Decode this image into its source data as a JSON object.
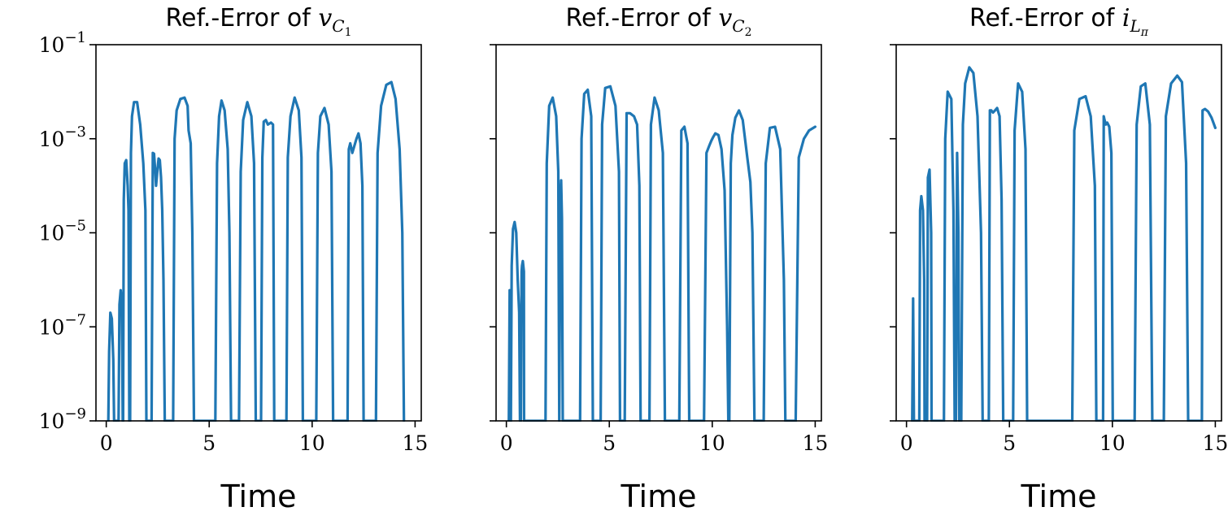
{
  "chart_data": [
    {
      "type": "line",
      "title": "Ref.-Error of",
      "title_symbol": "v",
      "title_subscript": "C",
      "title_subsubscript": "1",
      "xlabel": "Time",
      "ylabel": "",
      "xlim": [
        -0.5,
        15.3
      ],
      "ylim": [
        1e-09,
        0.1
      ],
      "yscale": "log",
      "xticks": [
        0,
        5,
        10,
        15
      ],
      "xtick_labels": [
        "0",
        "5",
        "10",
        "15"
      ],
      "yticks": [
        1e-09,
        1e-07,
        1e-05,
        0.001,
        0.1
      ],
      "ytick_labels": [
        {
          "base": "10",
          "exp": "−9"
        },
        {
          "base": "10",
          "exp": "−7"
        },
        {
          "base": "10",
          "exp": "−5"
        },
        {
          "base": "10",
          "exp": "−3"
        },
        {
          "base": "10",
          "exp": "−1"
        }
      ],
      "show_ytick_labels": true,
      "line_color": "#1f77b4",
      "series": [
        {
          "x": [
            0.1,
            0.14,
            0.2,
            0.27,
            0.34,
            0.38,
            0.6,
            0.64,
            0.7,
            0.76,
            0.8,
            0.82,
            0.85,
            0.9,
            0.97,
            1.04,
            1.08,
            1.12,
            1.16,
            1.2,
            1.25,
            1.35,
            1.5,
            1.65,
            1.8,
            1.9,
            1.95,
            2.2,
            2.26,
            2.32,
            2.38,
            2.42,
            2.48,
            2.54,
            2.6,
            2.66,
            2.72,
            2.78,
            2.84,
            2.88,
            3.25,
            3.32,
            3.42,
            3.6,
            3.8,
            3.95,
            4.0,
            4.1,
            4.18,
            4.26,
            5.3,
            5.38,
            5.48,
            5.6,
            5.75,
            5.9,
            5.98,
            6.06,
            6.45,
            6.53,
            6.65,
            6.85,
            7.05,
            7.18,
            7.26,
            7.52,
            7.58,
            7.65,
            7.75,
            7.85,
            8.0,
            8.1,
            8.16,
            8.75,
            8.82,
            8.95,
            9.15,
            9.35,
            9.48,
            9.55,
            10.2,
            10.28,
            10.4,
            10.6,
            10.8,
            10.94,
            11.02,
            11.72,
            11.78,
            11.85,
            11.95,
            12.05,
            12.15,
            12.25,
            12.35,
            12.44,
            12.5,
            13.1,
            13.18,
            13.35,
            13.6,
            13.85,
            14.05,
            14.25,
            14.38,
            14.46
          ],
          "y": [
            1e-09,
            3e-08,
            2e-07,
            1.5e-07,
            2e-08,
            1e-09,
            1e-09,
            3e-07,
            6e-07,
            3e-07,
            1e-09,
            1e-09,
            5e-05,
            0.0003,
            0.00035,
            0.0001,
            3e-05,
            1e-09,
            1e-09,
            0.0005,
            0.003,
            0.006,
            0.006,
            0.002,
            0.0003,
            3e-05,
            1e-09,
            1e-09,
            0.0005,
            0.00048,
            0.0002,
            0.0001,
            0.0002,
            0.00038,
            0.00035,
            0.00015,
            3e-05,
            1e-06,
            1e-09,
            1e-09,
            1e-09,
            0.001,
            0.004,
            0.007,
            0.0075,
            0.005,
            0.0015,
            0.0008,
            1e-05,
            1e-09,
            1e-09,
            0.0003,
            0.003,
            0.0065,
            0.004,
            0.0006,
            1e-05,
            1e-09,
            1e-09,
            0.0002,
            0.0025,
            0.006,
            0.003,
            0.0003,
            1e-09,
            1e-09,
            0.0004,
            0.0023,
            0.0025,
            0.002,
            0.0022,
            0.002,
            1e-09,
            1e-09,
            0.0004,
            0.003,
            0.0075,
            0.004,
            0.0004,
            1e-09,
            1e-09,
            0.0005,
            0.003,
            0.0045,
            0.002,
            0.0002,
            1e-09,
            1e-09,
            0.0006,
            0.0008,
            0.0005,
            0.0007,
            0.001,
            0.0013,
            0.0008,
            0.0001,
            1e-09,
            1e-09,
            0.0005,
            0.005,
            0.014,
            0.016,
            0.007,
            0.0006,
            1e-05,
            1e-09
          ]
        }
      ]
    },
    {
      "type": "line",
      "title": "Ref.-Error of",
      "title_symbol": "v",
      "title_subscript": "C",
      "title_subsubscript": "2",
      "xlabel": "Time",
      "ylabel": "",
      "xlim": [
        -0.5,
        15.3
      ],
      "ylim": [
        1e-09,
        0.1
      ],
      "yscale": "log",
      "xticks": [
        0,
        5,
        10,
        15
      ],
      "xtick_labels": [
        "0",
        "5",
        "10",
        "15"
      ],
      "yticks": [
        1e-09,
        1e-07,
        1e-05,
        0.001,
        0.1
      ],
      "ytick_labels": [],
      "show_ytick_labels": false,
      "line_color": "#1f77b4",
      "series": [
        {
          "x": [
            0.12,
            0.16,
            0.2,
            0.22,
            0.26,
            0.32,
            0.4,
            0.48,
            0.55,
            0.62,
            0.66,
            0.7,
            0.74,
            0.76,
            0.8,
            0.85,
            0.86,
            1.9,
            1.96,
            2.08,
            2.25,
            2.42,
            2.52,
            2.57,
            2.62,
            2.66,
            2.7,
            2.74,
            3.58,
            3.65,
            3.78,
            3.95,
            4.12,
            4.2,
            4.58,
            4.65,
            4.8,
            5.05,
            5.3,
            5.47,
            5.52,
            5.75,
            5.84,
            6.0,
            6.2,
            6.35,
            6.46,
            6.52,
            6.95,
            7.02,
            7.2,
            7.4,
            7.6,
            7.7,
            8.4,
            8.5,
            8.65,
            8.8,
            8.88,
            9.6,
            9.72,
            9.85,
            9.95,
            10.05,
            10.15,
            10.3,
            10.45,
            10.6,
            10.72,
            10.78,
            10.83,
            10.9,
            10.98,
            11.12,
            11.3,
            11.48,
            11.7,
            11.85,
            11.95,
            12.05,
            12.5,
            12.6,
            12.8,
            13.05,
            13.3,
            13.48,
            13.55,
            14.05,
            14.2,
            14.45,
            14.7,
            15.0
          ],
          "y": [
            1e-09,
            6e-07,
            4e-07,
            1e-09,
            2e-06,
            1.2e-05,
            1.7e-05,
            1e-05,
            1e-06,
            2e-07,
            1e-09,
            1e-09,
            1.5e-06,
            2e-06,
            2.5e-06,
            1.5e-06,
            1e-09,
            1e-09,
            0.0003,
            0.005,
            0.0075,
            0.003,
            0.0002,
            1e-09,
            5e-05,
            0.00013,
            2e-05,
            1e-09,
            1e-09,
            0.001,
            0.009,
            0.011,
            0.003,
            1e-09,
            1e-09,
            0.002,
            0.012,
            0.013,
            0.005,
            0.0002,
            1e-09,
            1e-09,
            0.0035,
            0.0035,
            0.003,
            0.002,
            0.0001,
            1e-09,
            1e-09,
            0.002,
            0.0075,
            0.004,
            0.0005,
            1e-09,
            1e-09,
            0.0015,
            0.0018,
            0.0008,
            1e-09,
            1e-09,
            0.0005,
            0.0007,
            0.0009,
            0.0011,
            0.0013,
            0.0012,
            0.0006,
            8e-05,
            1e-07,
            1e-09,
            1e-09,
            0.0003,
            0.0012,
            0.0028,
            0.004,
            0.0025,
            0.0004,
            0.00012,
            1e-05,
            1e-09,
            1e-09,
            0.0003,
            0.0017,
            0.0018,
            0.0006,
            1e-06,
            1e-09,
            1e-09,
            0.0004,
            0.001,
            0.0015,
            0.0018
          ]
        }
      ]
    },
    {
      "type": "line",
      "title": "Ref.-Error of",
      "title_symbol": "i",
      "title_subscript": "L",
      "title_subsubscript": "π",
      "xlabel": "Time",
      "ylabel": "",
      "xlim": [
        -0.5,
        15.3
      ],
      "ylim": [
        1e-09,
        0.1
      ],
      "yscale": "log",
      "xticks": [
        0,
        5,
        10,
        15
      ],
      "xtick_labels": [
        "0",
        "5",
        "10",
        "15"
      ],
      "yticks": [
        1e-09,
        1e-07,
        1e-05,
        0.001,
        0.1
      ],
      "ytick_labels": [],
      "show_ytick_labels": false,
      "line_color": "#1f77b4",
      "series": [
        {
          "x": [
            0.28,
            0.32,
            0.36,
            0.62,
            0.66,
            0.72,
            0.8,
            0.86,
            0.88,
            1.0,
            1.04,
            1.12,
            1.2,
            1.22,
            1.82,
            1.88,
            2.0,
            2.18,
            2.28,
            2.34,
            2.4,
            2.46,
            2.52,
            2.56,
            2.66,
            2.74,
            2.85,
            3.05,
            3.25,
            3.45,
            3.62,
            3.7,
            4.0,
            4.05,
            4.12,
            4.2,
            4.3,
            4.4,
            4.52,
            4.62,
            4.7,
            5.18,
            5.25,
            5.42,
            5.62,
            5.78,
            5.86,
            8.05,
            8.15,
            8.4,
            8.7,
            8.95,
            9.15,
            9.22,
            9.55,
            9.58,
            9.62,
            9.68,
            9.75,
            9.85,
            9.95,
            10.02,
            11.08,
            11.18,
            11.38,
            11.6,
            11.82,
            11.94,
            12.5,
            12.6,
            12.85,
            13.15,
            13.38,
            13.58,
            13.68,
            14.35,
            14.38,
            14.5,
            14.65,
            14.82,
            15.0
          ],
          "y": [
            1e-09,
            4e-07,
            1e-09,
            1e-09,
            3e-05,
            6e-05,
            3e-05,
            1e-06,
            1e-09,
            1e-09,
            0.00015,
            0.00022,
            1e-05,
            1e-09,
            1e-09,
            0.001,
            0.01,
            0.007,
            3e-05,
            1e-09,
            1e-09,
            0.0005,
            1e-05,
            1e-09,
            1e-09,
            0.002,
            0.015,
            0.033,
            0.025,
            0.003,
            1e-05,
            1e-09,
            1e-09,
            0.004,
            0.004,
            0.0036,
            0.004,
            0.0045,
            0.003,
            5e-05,
            1e-09,
            1e-09,
            0.0015,
            0.015,
            0.01,
            0.0006,
            1e-09,
            1e-09,
            0.0015,
            0.007,
            0.008,
            0.003,
            0.0001,
            1e-09,
            1e-09,
            0.003,
            0.0025,
            0.002,
            0.0022,
            0.0018,
            0.0005,
            1e-09,
            1e-09,
            0.002,
            0.013,
            0.015,
            0.002,
            1e-09,
            1e-09,
            0.003,
            0.015,
            0.022,
            0.016,
            0.0003,
            1e-09,
            1e-09,
            0.004,
            0.0043,
            0.0038,
            0.0028,
            0.0017
          ]
        }
      ]
    }
  ]
}
